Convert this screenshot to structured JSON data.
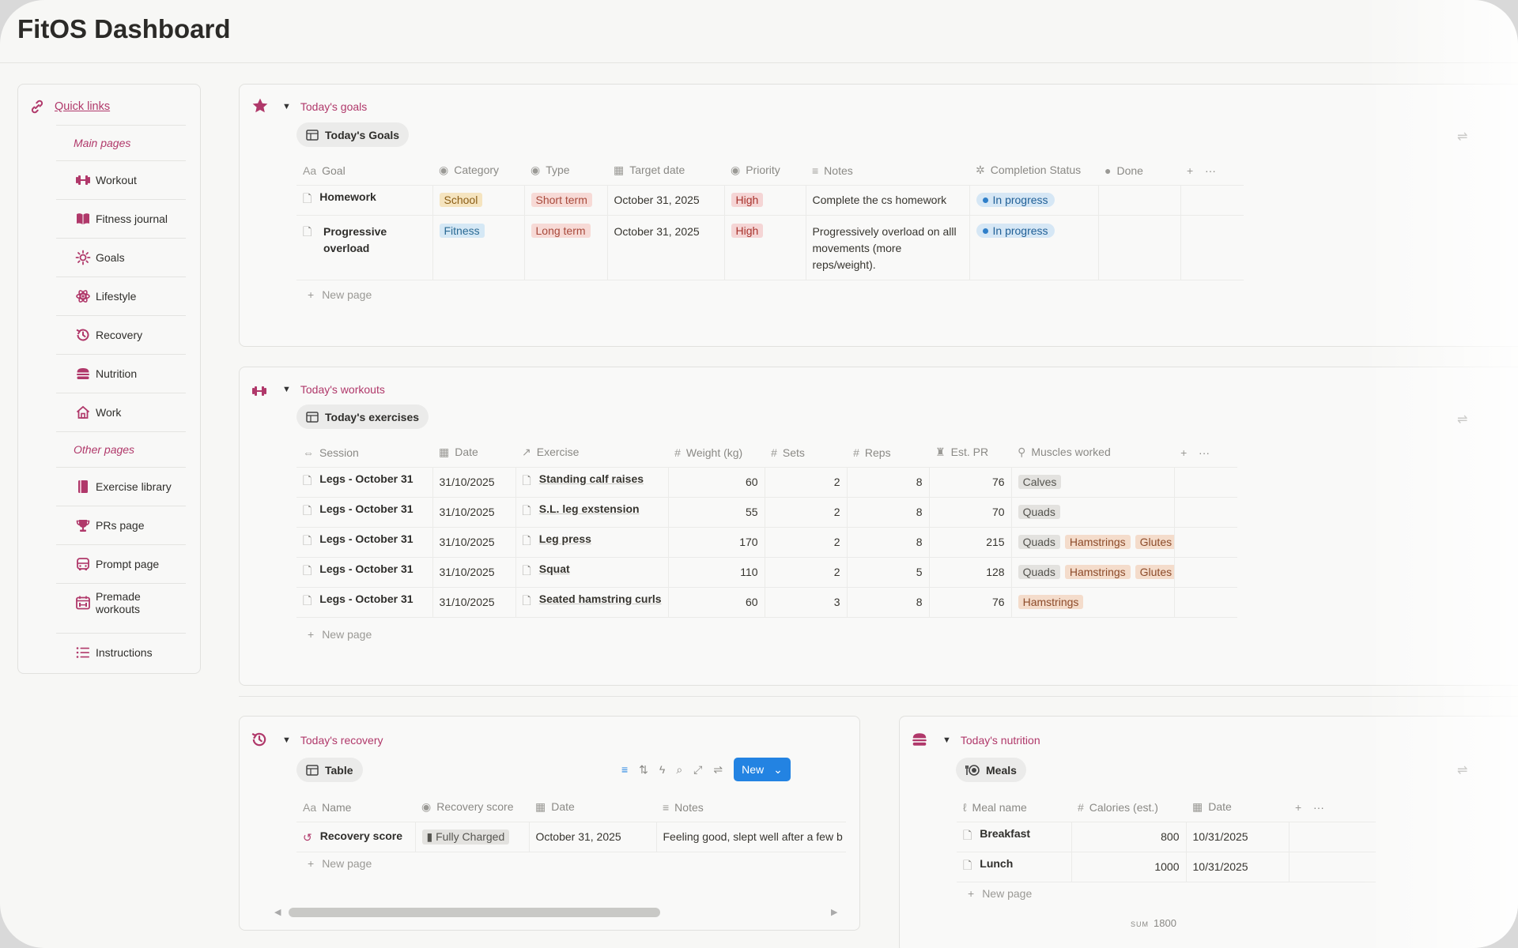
{
  "title": "FitOS Dashboard",
  "sidebar": {
    "quick_links": "Quick links",
    "main_pages_label": "Main pages",
    "main_pages": [
      "Workout",
      "Fitness journal",
      "Goals",
      "Lifestyle",
      "Recovery",
      "Nutrition",
      "Work"
    ],
    "other_pages_label": "Other pages",
    "other_pages": [
      "Exercise library",
      "PRs page",
      "Prompt page",
      "Premade workouts"
    ],
    "instructions": "Instructions"
  },
  "goals": {
    "section_title": "Today's goals",
    "view": "Today's Goals",
    "columns": [
      "Goal",
      "Category",
      "Type",
      "Target date",
      "Priority",
      "Notes",
      "Completion Status",
      "Done"
    ],
    "rows": [
      {
        "goal": "Homework",
        "category": "School",
        "type": "Short term",
        "target_date": "October 31, 2025",
        "priority": "High",
        "notes": "Complete the cs homework",
        "status": "In progress"
      },
      {
        "goal_l1": "Progressive",
        "goal_l2": "overload",
        "category": "Fitness",
        "type": "Long term",
        "target_date": "October 31, 2025",
        "priority": "High",
        "notes_l1": "Progressively overload on alll",
        "notes_l2": "movements (more",
        "notes_l3": "reps/weight).",
        "status": "In progress"
      }
    ],
    "new_page": "New page"
  },
  "workouts": {
    "section_title": "Today's workouts",
    "view": "Today's exercises",
    "columns": [
      "Session",
      "Date",
      "Exercise",
      "Weight (kg)",
      "Sets",
      "Reps",
      "Est. PR",
      "Muscles worked"
    ],
    "rows": [
      {
        "session": "Legs - October 31",
        "date": "31/10/2025",
        "exercise": "Standing calf raises",
        "weight": "60",
        "sets": "2",
        "reps": "8",
        "pr": "76",
        "m1": "Calves",
        "m2": "",
        "m3": ""
      },
      {
        "session": "Legs - October 31",
        "date": "31/10/2025",
        "exercise": "S.L. leg exstension",
        "weight": "55",
        "sets": "2",
        "reps": "8",
        "pr": "70",
        "m1": "Quads",
        "m2": "",
        "m3": ""
      },
      {
        "session": "Legs - October 31",
        "date": "31/10/2025",
        "exercise": "Leg press",
        "weight": "170",
        "sets": "2",
        "reps": "8",
        "pr": "215",
        "m1": "Quads",
        "m2": "Hamstrings",
        "m3": "Glutes"
      },
      {
        "session": "Legs - October 31",
        "date": "31/10/2025",
        "exercise": "Squat",
        "weight": "110",
        "sets": "2",
        "reps": "5",
        "pr": "128",
        "m1": "Quads",
        "m2": "Hamstrings",
        "m3": "Glutes"
      },
      {
        "session": "Legs - October 31",
        "date": "31/10/2025",
        "exercise": "Seated hamstring curls",
        "weight": "60",
        "sets": "3",
        "reps": "8",
        "pr": "76",
        "m1": "Hamstrings",
        "m2": "",
        "m3": ""
      }
    ],
    "new_page": "New page"
  },
  "recovery": {
    "section_title": "Today's recovery",
    "view": "Table",
    "new_button": "New",
    "columns": [
      "Name",
      "Recovery score",
      "Date",
      "Notes"
    ],
    "rows": [
      {
        "name": "Recovery score",
        "score": "Fully Charged",
        "date": "October 31, 2025",
        "notes": "Feeling good, slept well after a few b"
      }
    ],
    "new_page": "New page",
    "scroll_position": 0.0,
    "scroll_visible_fraction": 0.7
  },
  "nutrition": {
    "section_title": "Today's nutrition",
    "view": "Meals",
    "columns": [
      "Meal name",
      "Calories (est.)",
      "Date"
    ],
    "rows": [
      {
        "meal": "Breakfast",
        "calories": "800",
        "date": "10/31/2025"
      },
      {
        "meal": "Lunch",
        "calories": "1000",
        "date": "10/31/2025"
      }
    ],
    "new_page": "New page",
    "sum_label": "SUM",
    "sum_value": "1800"
  },
  "colors": {
    "accent": "#b0386a",
    "blue_button": "#2383e2"
  }
}
